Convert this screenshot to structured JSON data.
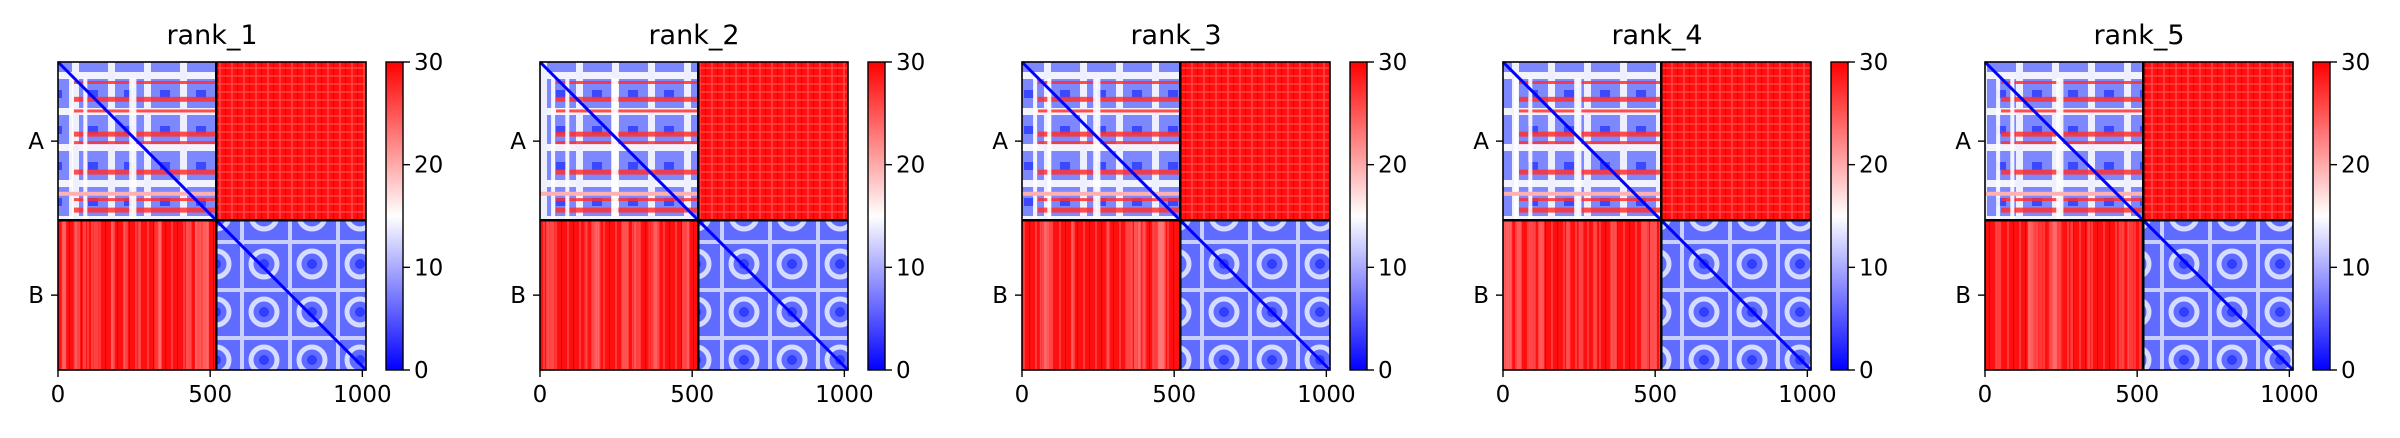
{
  "colors": {
    "low": "#0000ff",
    "mid": "#ffffff",
    "high": "#ff0000",
    "frame": "#000000"
  },
  "chart_data": [
    {
      "type": "heatmap",
      "title": "rank_1",
      "x_ticks": [
        0,
        500,
        1000
      ],
      "y_ticks": [
        "A",
        "B"
      ],
      "xlim": [
        0,
        1012
      ],
      "chain_boundary": 520,
      "colorbar": {
        "min": 0,
        "max": 30,
        "ticks": [
          0,
          10,
          20,
          30
        ],
        "cmap": "bwr"
      }
    },
    {
      "type": "heatmap",
      "title": "rank_2",
      "x_ticks": [
        0,
        500,
        1000
      ],
      "y_ticks": [
        "A",
        "B"
      ],
      "xlim": [
        0,
        1012
      ],
      "chain_boundary": 520,
      "colorbar": {
        "min": 0,
        "max": 30,
        "ticks": [
          0,
          10,
          20,
          30
        ],
        "cmap": "bwr"
      }
    },
    {
      "type": "heatmap",
      "title": "rank_3",
      "x_ticks": [
        0,
        500,
        1000
      ],
      "y_ticks": [
        "A",
        "B"
      ],
      "xlim": [
        0,
        1012
      ],
      "chain_boundary": 520,
      "colorbar": {
        "min": 0,
        "max": 30,
        "ticks": [
          0,
          10,
          20,
          30
        ],
        "cmap": "bwr"
      }
    },
    {
      "type": "heatmap",
      "title": "rank_4",
      "x_ticks": [
        0,
        500,
        1000
      ],
      "y_ticks": [
        "A",
        "B"
      ],
      "xlim": [
        0,
        1012
      ],
      "chain_boundary": 520,
      "colorbar": {
        "min": 0,
        "max": 30,
        "ticks": [
          0,
          10,
          20,
          30
        ],
        "cmap": "bwr"
      }
    },
    {
      "type": "heatmap",
      "title": "rank_5",
      "x_ticks": [
        0,
        500,
        1000
      ],
      "y_ticks": [
        "A",
        "B"
      ],
      "xlim": [
        0,
        1012
      ],
      "chain_boundary": 520,
      "colorbar": {
        "min": 0,
        "max": 30,
        "ticks": [
          0,
          10,
          20,
          30
        ],
        "cmap": "bwr"
      }
    }
  ]
}
